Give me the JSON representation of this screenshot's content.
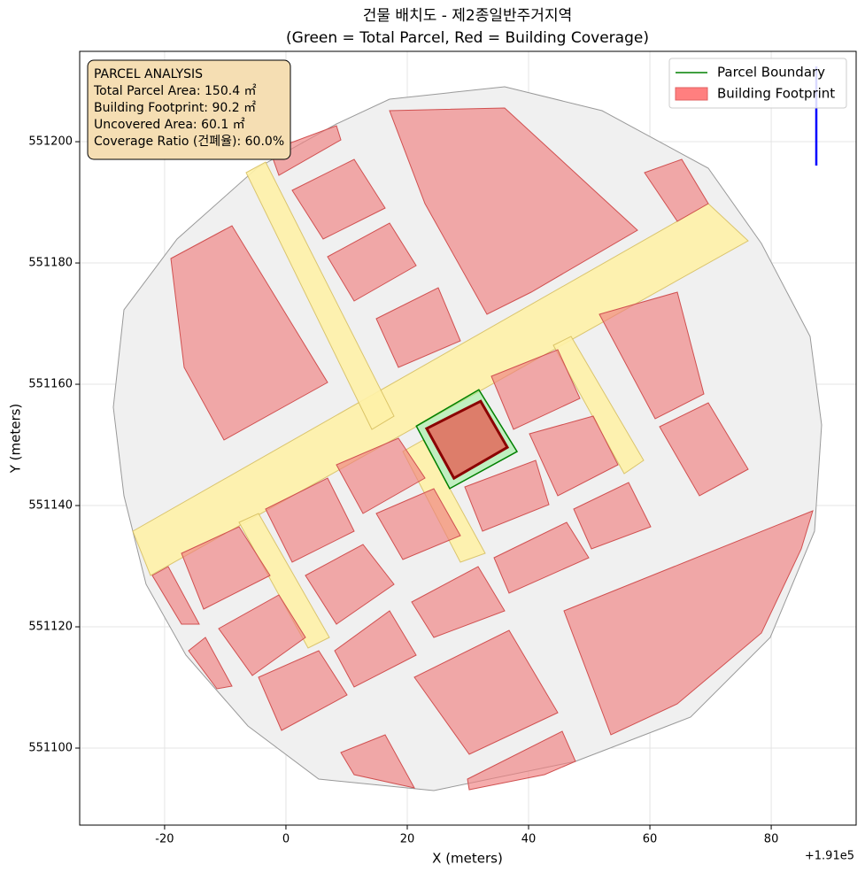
{
  "chart_data": {
    "type": "polygon",
    "title": "건물 배치도 - 제2종일반주거지역",
    "subtitle": "(Green = Total Parcel, Red = Building Coverage)",
    "x_label": "X (meters)",
    "y_label": "Y (meters)",
    "x_offset_label": "+1.91e5",
    "xlim": [
      -34.0,
      94.0
    ],
    "ylim": [
      551087.3,
      551214.9
    ],
    "xticks": [
      -20,
      0,
      20,
      40,
      60,
      80
    ],
    "yticks": [
      551100,
      551120,
      551140,
      551160,
      551180,
      551200
    ],
    "grid": true,
    "legend": "upper right",
    "info_box": [
      "PARCEL ANALYSIS",
      "Total Parcel Area: 150.4 ㎡",
      "Building Footprint: 90.2 ㎡",
      "Uncovered Area: 60.1 ㎡",
      "Coverage Ratio (건폐율): 60.0%"
    ],
    "series": [
      {
        "name": "Parcel Boundary",
        "color": "#008000",
        "x": [
          21.5,
          31.8,
          38.1,
          27.0
        ],
        "y": [
          551153.1,
          551159.1,
          551148.9,
          551142.8
        ]
      },
      {
        "name": "Building Footprint",
        "color": "#ff7f7f",
        "x": [
          23.2,
          32.1,
          36.5,
          27.7
        ],
        "y": [
          551152.7,
          551157.2,
          551149.6,
          551144.5
        ]
      }
    ]
  }
}
